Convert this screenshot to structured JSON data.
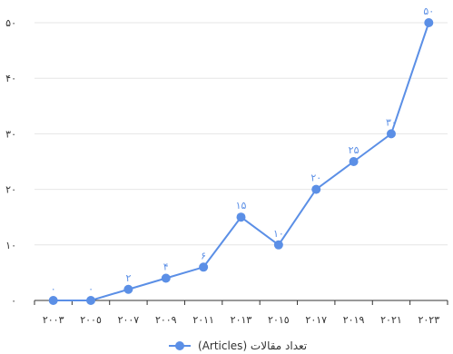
{
  "chart_data": {
    "type": "line",
    "x": [
      "٢٠٠٣",
      "٢٠٠٥",
      "٢٠٠٧",
      "٢٠٠٩",
      "٢٠١١",
      "٢٠١٣",
      "٢٠١٥",
      "٢٠١٧",
      "٢٠١٩",
      "٢٠٢١",
      "٢٠٢٣"
    ],
    "series": [
      {
        "name": "تعداد مقالات (Articles)",
        "values": [
          0,
          0,
          2,
          4,
          6,
          15,
          10,
          20,
          25,
          30,
          50
        ],
        "labels": [
          "٠",
          "٠",
          "٢",
          "۴",
          "۶",
          "١۵",
          "١٠",
          "٢٠",
          "٢۵",
          "٣٠",
          "۵٠"
        ],
        "color": "#5b8fe6"
      }
    ],
    "yticks": [
      0,
      10,
      20,
      30,
      40,
      50
    ],
    "ytick_labels": [
      "٠",
      "١٠",
      "٢٠",
      "٣٠",
      "۴٠",
      "۵٠"
    ],
    "ylim": [
      0,
      50
    ],
    "title": "",
    "xlabel": "",
    "ylabel": "",
    "grid": "horizontal",
    "legend_position": "bottom-center",
    "colors": {
      "series": "#5b8fe6",
      "grid": "#e6e6e6",
      "axis": "#333333"
    }
  }
}
